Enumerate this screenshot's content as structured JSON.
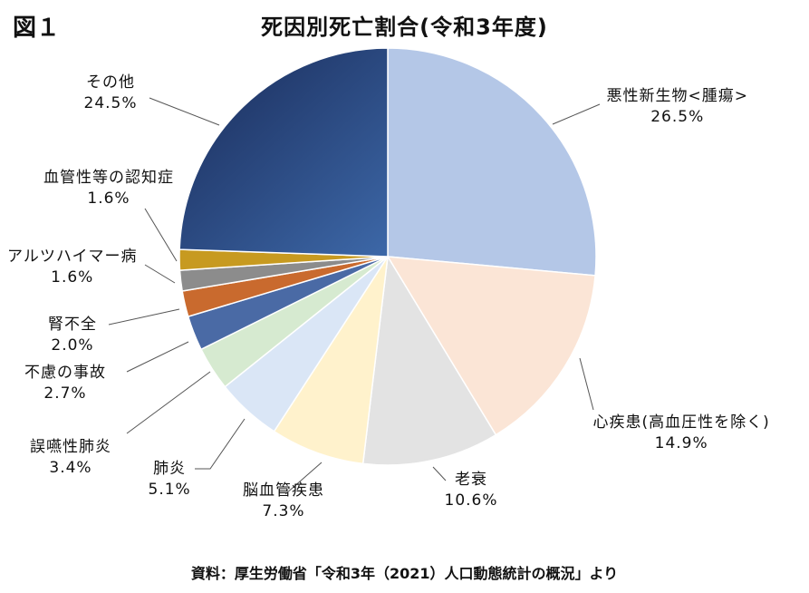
{
  "figure_label": "図１",
  "footnote": "資料：厚生労働省「令和3年（2021）人口動態統計の概況」より",
  "chart_data": {
    "type": "pie",
    "title": "死因別死亡割合(令和3年度)",
    "unit": "%",
    "start_angle_deg": 0,
    "direction": "clockwise",
    "slices": [
      {
        "label": "悪性新生物<腫瘍>",
        "value": 26.5,
        "display": "26.5%",
        "color": "#5b7fc9"
      },
      {
        "label": "心疾患(高血圧性を除く)",
        "value": 14.9,
        "display": "14.9%",
        "color": "#ef8c49"
      },
      {
        "label": "老衰",
        "value": 10.6,
        "display": "10.6%",
        "color": "#a6a6a6"
      },
      {
        "label": "脳血管疾患",
        "value": 7.3,
        "display": "7.3%",
        "color": "#fdc72f"
      },
      {
        "label": "肺炎",
        "value": 5.1,
        "display": "5.1%",
        "color": "#8db3e2"
      },
      {
        "label": "誤嚥性肺炎",
        "value": 3.4,
        "display": "3.4%",
        "color": "#93c47d"
      },
      {
        "label": "不慮の事故",
        "value": 2.7,
        "display": "2.7%",
        "color": "#264478"
      },
      {
        "label": "腎不全",
        "value": 2.0,
        "display": "2.0%",
        "color": "#9e480e"
      },
      {
        "label": "アルツハイマー病",
        "value": 1.6,
        "display": "1.6%",
        "color": "#636363"
      },
      {
        "label": "血管性等の認知症",
        "value": 1.6,
        "display": "1.6%",
        "color": "#997300"
      },
      {
        "label": "その他",
        "value": 24.5,
        "display": "24.5%",
        "color": "#27417a"
      }
    ]
  }
}
